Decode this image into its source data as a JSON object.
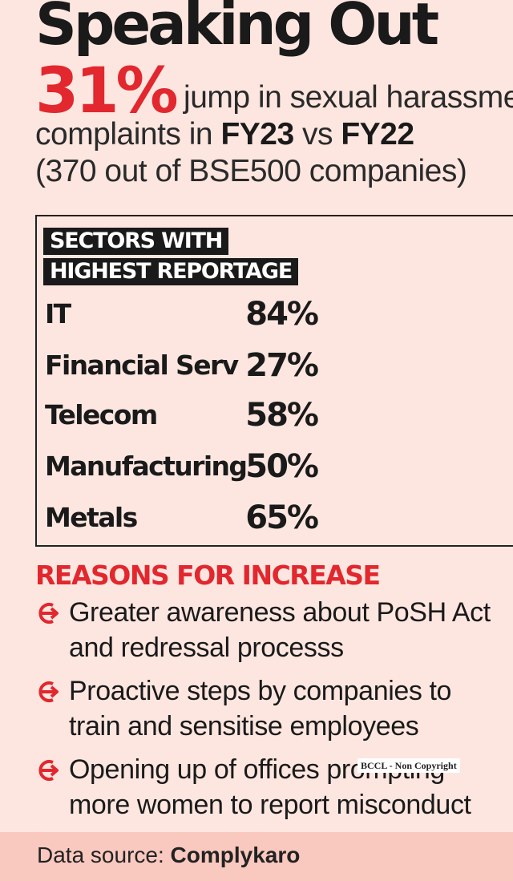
{
  "title": "Speaking Out",
  "headline": {
    "percent": "31%",
    "text_1": " jump in sexual harassment",
    "text_2a": "complaints in ",
    "fy_current": "FY23",
    "text_2b": " vs ",
    "fy_previous": "FY22",
    "text_3": "(370 out of BSE500 companies)"
  },
  "sectors": {
    "heading_line1": "SECTORS WITH",
    "heading_line2": "HIGHEST REPORTAGE",
    "rows": [
      {
        "name": "IT",
        "value": "84%"
      },
      {
        "name": "Financial Serv",
        "value": "27%"
      },
      {
        "name": "Telecom",
        "value": "58%"
      },
      {
        "name": "Manufacturing",
        "value": "50%"
      },
      {
        "name": "Metals",
        "value": "65%"
      }
    ]
  },
  "reasons": {
    "heading": "REASONS FOR INCREASE",
    "items": [
      "Greater awareness about PoSH Act\nand redressal processs",
      "Proactive steps by companies to\ntrain and sensitise employees",
      "Opening up of offices prompting\nmore women to report misconduct"
    ]
  },
  "watermark": "BCCL - Non Copyright",
  "source": {
    "label": "Data source: ",
    "name": "Complykaro"
  },
  "colors": {
    "accent_red": "#e2272e",
    "background": "#fde6e0",
    "dress": "#e8383a",
    "skin": "#f2c6a8"
  }
}
